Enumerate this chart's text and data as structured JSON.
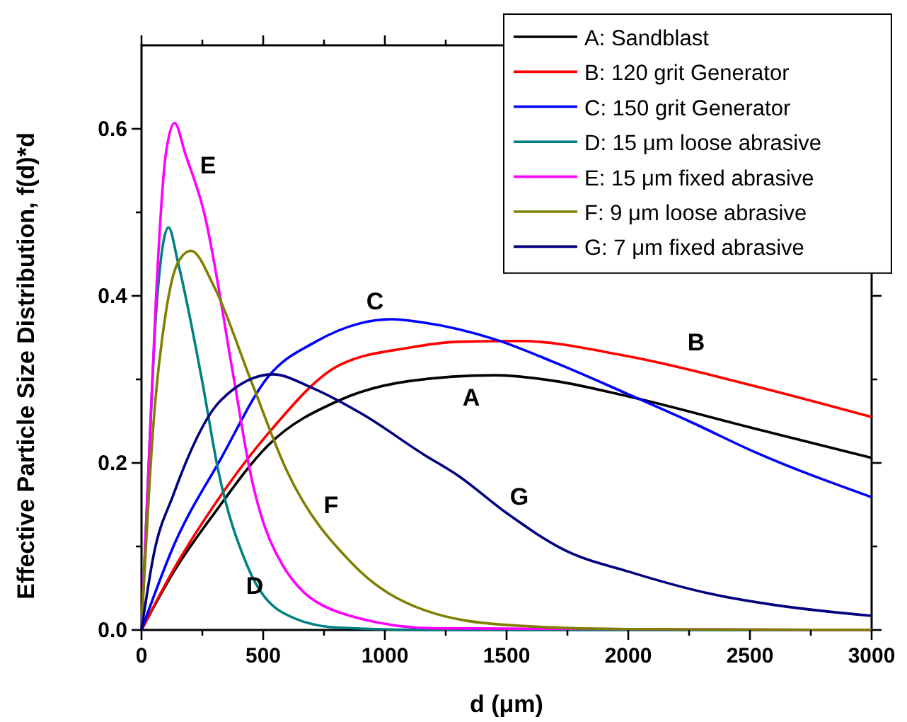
{
  "chart_data": {
    "type": "line",
    "xlabel": "d (μm)",
    "ylabel": "Effective Particle Size Distribution, f(d)*d",
    "xlim": [
      0,
      3000
    ],
    "ylim": [
      0,
      0.7
    ],
    "xticks": [
      0,
      {
        "value": 250,
        "label": null
      },
      500,
      {
        "value": 750,
        "label": null
      },
      1000,
      {
        "value": 1250,
        "label": null
      },
      1500,
      {
        "value": 1750,
        "label": null
      },
      2000,
      {
        "value": 2250,
        "label": null
      },
      2500,
      {
        "value": 2750,
        "label": null
      },
      3000
    ],
    "yticks": [
      {
        "value": 0,
        "label": "0.0"
      },
      {
        "value": 0.1,
        "label": null
      },
      0.2,
      {
        "value": 0.3,
        "label": null
      },
      0.4,
      {
        "value": 0.5,
        "label": null
      },
      0.6
    ],
    "grid": false,
    "legend": "top right",
    "marker": "none",
    "line_style": "solid",
    "series": [
      {
        "name": "A: Sandblast",
        "color": "#000000",
        "x": [
          0,
          131,
          300,
          520,
          813,
          1100,
          1452,
          1700,
          1994,
          2520,
          3000
        ],
        "values": [
          0,
          0.069,
          0.14,
          0.221,
          0.275,
          0.298,
          0.305,
          0.298,
          0.28,
          0.241,
          0.206
        ]
      },
      {
        "name": "B: 120 grit Generator",
        "color": "#ff0000",
        "x": [
          0,
          131,
          300,
          520,
          813,
          1100,
          1300,
          1551,
          1994,
          2520,
          3000
        ],
        "values": [
          0,
          0.072,
          0.15,
          0.235,
          0.317,
          0.338,
          0.345,
          0.346,
          0.328,
          0.292,
          0.255
        ]
      },
      {
        "name": "C: 150 grit Generator",
        "color": "#0000ff",
        "x": [
          0,
          131,
          326,
          520,
          715,
          1027,
          1160,
          1452,
          1700,
          1994,
          2250,
          2520,
          3000
        ],
        "values": [
          0,
          0.1,
          0.205,
          0.303,
          0.345,
          0.372,
          0.368,
          0.348,
          0.32,
          0.283,
          0.25,
          0.213,
          0.159
        ]
      },
      {
        "name": "D: 15 μm loose abrasive",
        "color": "#008080",
        "x": [
          0,
          30,
          60,
          111,
          150,
          248,
          316,
          433,
          579,
          800,
          1200,
          3000
        ],
        "values": [
          0,
          0.2,
          0.38,
          0.482,
          0.44,
          0.3,
          0.19,
          0.078,
          0.021,
          0.003,
          0,
          0
        ]
      },
      {
        "name": "E: 15 μm fixed abrasive",
        "color": "#ff00ff",
        "x": [
          0,
          30,
          60,
          100,
          136,
          180,
          257,
          380,
          446,
          579,
          813,
          1200,
          3000
        ],
        "values": [
          0,
          0.2,
          0.4,
          0.57,
          0.607,
          0.57,
          0.5,
          0.3,
          0.19,
          0.078,
          0.021,
          0.002,
          0
        ]
      },
      {
        "name": "F: 9 μm loose abrasive",
        "color": "#808000",
        "x": [
          0,
          50,
          100,
          150,
          203,
          300,
          448,
          598,
          871,
          1160,
          1500,
          2000,
          3000
        ],
        "values": [
          0,
          0.25,
          0.38,
          0.44,
          0.454,
          0.41,
          0.3,
          0.19,
          0.078,
          0.024,
          0.006,
          0.001,
          0
        ]
      },
      {
        "name": "G: 7 μm fixed abrasive",
        "color": "#000080",
        "x": [
          0,
          50,
          131,
          326,
          540,
          700,
          910,
          1160,
          1300,
          1500,
          1743,
          2000,
          2327,
          2600,
          3000
        ],
        "values": [
          0,
          0.09,
          0.162,
          0.275,
          0.306,
          0.29,
          0.258,
          0.21,
          0.185,
          0.14,
          0.095,
          0.07,
          0.044,
          0.03,
          0.017
        ]
      }
    ],
    "annotations": [
      "A",
      "B",
      "C",
      "D",
      "E",
      "F",
      "G"
    ]
  }
}
